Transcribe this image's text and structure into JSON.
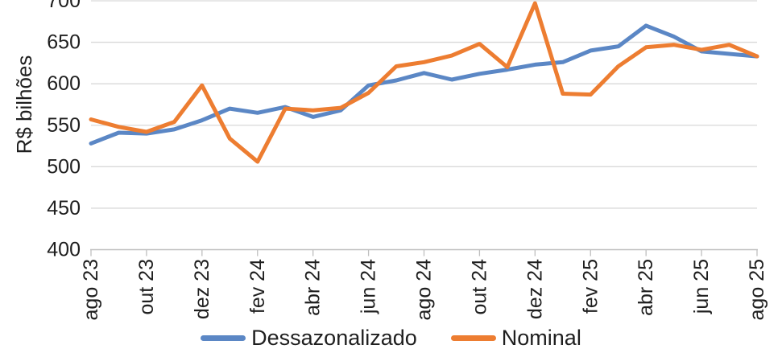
{
  "chart_data": {
    "type": "line",
    "title": "",
    "xlabel": "",
    "ylabel": "R$ bilhões",
    "ylim": [
      400,
      700
    ],
    "y_ticks": [
      400,
      450,
      500,
      550,
      600,
      650,
      700
    ],
    "grid": "horizontal",
    "legend_position": "bottom",
    "x": [
      "ago 23",
      "set 23",
      "out 23",
      "nov 23",
      "dez 23",
      "jan 24",
      "fev 24",
      "mar 24",
      "abr 24",
      "mai 24",
      "jun 24",
      "jul 24",
      "ago 24",
      "set 24",
      "out 24",
      "nov 24",
      "dez 24",
      "jan 25",
      "fev 25",
      "mar 25",
      "abr 25",
      "mai 25",
      "jun 25",
      "jul 25",
      "ago 25"
    ],
    "x_tick_labels": [
      "ago 23",
      "out 23",
      "dez 23",
      "fev 24",
      "abr 24",
      "jun 24",
      "ago 24",
      "out 24",
      "dez 24",
      "fev 25",
      "abr 25",
      "jun 25",
      "ago 25"
    ],
    "series": [
      {
        "name": "Dessazonalizado",
        "color": "#5B87C5",
        "values": [
          528,
          541,
          540,
          545,
          556,
          570,
          565,
          572,
          560,
          568,
          598,
          604,
          613,
          605,
          612,
          617,
          623,
          626,
          640,
          645,
          670,
          657,
          639,
          636,
          633
        ]
      },
      {
        "name": "Nominal",
        "color": "#ED7D31",
        "values": [
          557,
          548,
          542,
          554,
          598,
          534,
          506,
          570,
          568,
          571,
          589,
          621,
          626,
          634,
          648,
          620,
          697,
          588,
          587,
          621,
          644,
          647,
          641,
          647,
          633
        ]
      }
    ]
  },
  "colors": {
    "gridline": "#D9D9D9",
    "axis_line": "#BFBFBF",
    "tick_text": "#1F1F1F",
    "background": "#FFFFFF"
  }
}
